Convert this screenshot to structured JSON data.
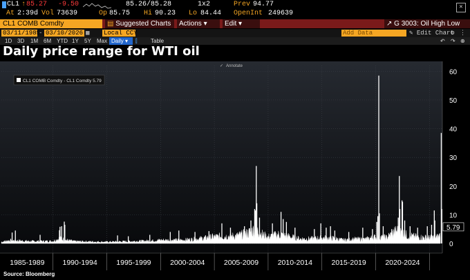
{
  "quote": {
    "ticker": "CL1",
    "arrow": "↑",
    "last": "85.27",
    "change": "-9.50",
    "bid_ask": "85.26/85.28",
    "size": "1x2",
    "prev_label": "Prev",
    "prev": "94.77",
    "at_label": "At",
    "at_time": "2:39d",
    "vol_label": "Vol",
    "vol": "73639",
    "op_label": "Op",
    "op": "85.75",
    "hi_label": "Hi",
    "hi": "90.23",
    "lo_label": "Lo",
    "lo": "84.44",
    "oi_label": "OpenInt",
    "oi": "249639"
  },
  "toolbar": {
    "security": "CL1 COMB Comdty",
    "suggested": "Suggested Charts",
    "actions": "Actions",
    "edit": "Edit",
    "page": "G 3003: Oil High Low"
  },
  "controls": {
    "start_date": "03/11/1985",
    "end_date": "03/10/2026",
    "currency": "Local CCY",
    "add_data": "Add Data",
    "edit_chart": "Edit Chart"
  },
  "periods": [
    "1D",
    "3D",
    "1M",
    "6M",
    "YTD",
    "1Y",
    "5Y",
    "Max"
  ],
  "frequency": "Daily",
  "table_label": "Table",
  "title": "Daily price range for WTI oil",
  "source": "Source: Bloomberg",
  "colors": {
    "accent": "#f5a623",
    "brand_bar": "#7a1a1a",
    "series": "#ffffff"
  },
  "chart_data": {
    "type": "bar",
    "annotate_label": "Annotate",
    "legend": {
      "text": "CL1 COMB Comdty - CL1 Comdty 5.79",
      "position": "top-left"
    },
    "last_value": 5.79,
    "ylim": [
      0,
      62
    ],
    "y_ticks": [
      0,
      10,
      20,
      30,
      40,
      50,
      60
    ],
    "x_range": [
      1985.2,
      2026.2
    ],
    "x_labels": [
      "1985-1989",
      "1990-1994",
      "1995-1999",
      "2000-2004",
      "2005-2009",
      "2010-2014",
      "2015-2019",
      "2020-2024"
    ],
    "x_label_bounds": [
      1985,
      1990,
      1995,
      2000,
      2005,
      2010,
      2015,
      2020,
      2025
    ],
    "baseline": [
      [
        1985.2,
        0.6
      ],
      [
        1986,
        1.2
      ],
      [
        1988,
        0.8
      ],
      [
        1990,
        0.9
      ],
      [
        1990.6,
        2.0
      ],
      [
        1991.2,
        1.3
      ],
      [
        1992,
        0.8
      ],
      [
        1995,
        0.6
      ],
      [
        1997,
        0.8
      ],
      [
        1998,
        0.9
      ],
      [
        1999,
        1.0
      ],
      [
        2000,
        1.3
      ],
      [
        2002,
        1.3
      ],
      [
        2003,
        1.6
      ],
      [
        2004,
        2.0
      ],
      [
        2005,
        2.6
      ],
      [
        2006,
        2.8
      ],
      [
        2007,
        2.9
      ],
      [
        2008,
        3.8
      ],
      [
        2008.8,
        5.5
      ],
      [
        2009.5,
        3.4
      ],
      [
        2010,
        2.5
      ],
      [
        2011,
        3.5
      ],
      [
        2012,
        2.6
      ],
      [
        2013,
        1.8
      ],
      [
        2014,
        1.8
      ],
      [
        2015,
        2.2
      ],
      [
        2016,
        2.0
      ],
      [
        2017,
        1.3
      ],
      [
        2018,
        1.7
      ],
      [
        2019,
        1.6
      ],
      [
        2020,
        2.5
      ],
      [
        2021,
        2.3
      ],
      [
        2022,
        5.0
      ],
      [
        2023,
        3.0
      ],
      [
        2024,
        2.4
      ],
      [
        2025,
        2.2
      ],
      [
        2025.8,
        2.6
      ],
      [
        2026.2,
        4.0
      ]
    ],
    "spikes": [
      [
        1986.2,
        3.8
      ],
      [
        1986.5,
        4.5
      ],
      [
        1988.8,
        3.0
      ],
      [
        1990.6,
        4.6
      ],
      [
        1990.65,
        5.8
      ],
      [
        1990.8,
        6.0
      ],
      [
        1991.05,
        7.6
      ],
      [
        1991.1,
        6.5
      ],
      [
        1996.0,
        2.8
      ],
      [
        1997.0,
        2.5
      ],
      [
        1999.0,
        3.0
      ],
      [
        2000.9,
        4.0
      ],
      [
        2001.7,
        4.5
      ],
      [
        2003.2,
        4.0
      ],
      [
        2004.5,
        4.3
      ],
      [
        2005.7,
        7.0
      ],
      [
        2006.5,
        5.5
      ],
      [
        2007.8,
        6.0
      ],
      [
        2008.4,
        8.0
      ],
      [
        2008.75,
        12.0
      ],
      [
        2008.82,
        11.5
      ],
      [
        2008.9,
        27.0
      ],
      [
        2008.95,
        14.0
      ],
      [
        2009.2,
        9.0
      ],
      [
        2010.4,
        7.0
      ],
      [
        2011.2,
        11.0
      ],
      [
        2011.4,
        8.5
      ],
      [
        2011.7,
        7.5
      ],
      [
        2012.5,
        5.5
      ],
      [
        2014.3,
        5.0
      ],
      [
        2014.9,
        7.0
      ],
      [
        2015.4,
        5.5
      ],
      [
        2015.8,
        6.0
      ],
      [
        2016.2,
        4.5
      ],
      [
        2017.5,
        4.0
      ],
      [
        2018.8,
        5.5
      ],
      [
        2019.7,
        5.0
      ],
      [
        2020.1,
        7.5
      ],
      [
        2020.2,
        9.5
      ],
      [
        2020.29,
        58.5
      ],
      [
        2020.35,
        10.5
      ],
      [
        2020.7,
        6.0
      ],
      [
        2021.5,
        5.0
      ],
      [
        2022.1,
        9.0
      ],
      [
        2022.2,
        23.5
      ],
      [
        2022.25,
        12.0
      ],
      [
        2022.45,
        15.0
      ],
      [
        2022.5,
        14.5
      ],
      [
        2022.7,
        8.0
      ],
      [
        2023.2,
        6.0
      ],
      [
        2023.9,
        5.5
      ],
      [
        2024.8,
        6.0
      ],
      [
        2025.2,
        6.5
      ],
      [
        2025.45,
        11.5
      ],
      [
        2025.5,
        8.0
      ],
      [
        2026.1,
        38.5
      ],
      [
        2026.15,
        12.0
      ]
    ]
  }
}
